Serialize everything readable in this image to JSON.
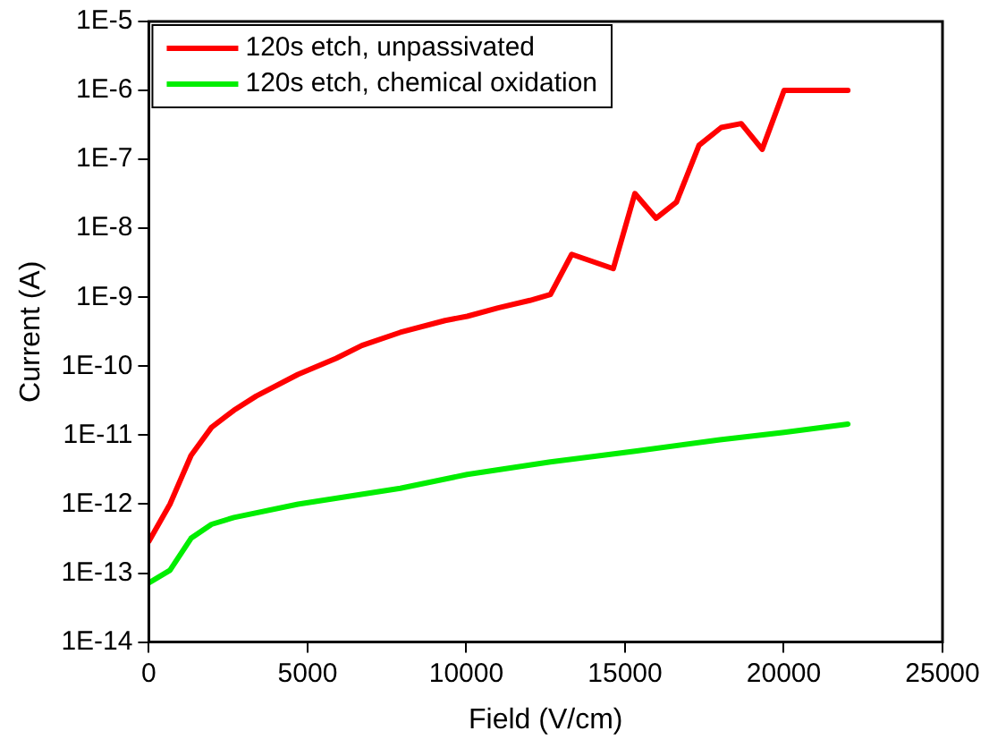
{
  "chart_data": {
    "type": "line",
    "xlabel": "Field (V/cm)",
    "ylabel": "Current (A)",
    "log": "y",
    "legend": "top left",
    "grid": false,
    "marker": "none",
    "line_style": "solid",
    "xlim": [
      0,
      25000
    ],
    "xticks": [
      0,
      5000,
      10000,
      15000,
      20000,
      25000
    ],
    "ylim": [
      1e-14,
      1e-05
    ],
    "yticks": [
      {
        "value": 1e-14,
        "label": "1E-14"
      },
      {
        "value": 1e-13,
        "label": "1E-13"
      },
      {
        "value": 1e-12,
        "label": "1E-12"
      },
      {
        "value": 1e-11,
        "label": "1E-11"
      },
      {
        "value": 1e-10,
        "label": "1E-10"
      },
      {
        "value": 1e-09,
        "label": "1E-9"
      },
      {
        "value": 1e-08,
        "label": "1E-8"
      },
      {
        "value": 1e-07,
        "label": "1E-7"
      },
      {
        "value": 1e-06,
        "label": "1E-6"
      },
      {
        "value": 1e-05,
        "label": "1E-5"
      }
    ],
    "series": [
      {
        "name": "120s etch, unpassivated",
        "color": "#ff0000",
        "x": [
          0,
          665,
          1330,
          1975,
          2680,
          3385,
          4695,
          5900,
          6710,
          7920,
          9330,
          10030,
          11000,
          12000,
          12650,
          13320,
          14630,
          15310,
          15980,
          16620,
          17330,
          18030,
          18660,
          19320,
          20010,
          22020
        ],
        "values": [
          2.9e-13,
          1e-12,
          5.1e-12,
          1.3e-11,
          2.3e-11,
          3.7e-11,
          7.6e-11,
          1.3e-10,
          2e-10,
          3.1e-10,
          4.6e-10,
          5.3e-10,
          7e-10,
          9e-10,
          1.1e-09,
          4.2e-09,
          2.6e-09,
          3.2e-08,
          1.4e-08,
          2.4e-08,
          1.6e-07,
          2.9e-07,
          3.3e-07,
          1.4e-07,
          1e-06,
          1e-06
        ]
      },
      {
        "name": "120s etch, chemical oxidation",
        "color": "#00ee00",
        "x": [
          0,
          665,
          1330,
          1975,
          2680,
          4700,
          7920,
          10030,
          12650,
          15370,
          17990,
          20010,
          22020
        ],
        "values": [
          7.2e-14,
          1.1e-13,
          3.2e-13,
          5.1e-13,
          6.4e-13,
          1e-12,
          1.7e-12,
          2.7e-12,
          4.1e-12,
          5.9e-12,
          8.6e-12,
          1.1e-11,
          1.45e-11
        ]
      }
    ]
  }
}
